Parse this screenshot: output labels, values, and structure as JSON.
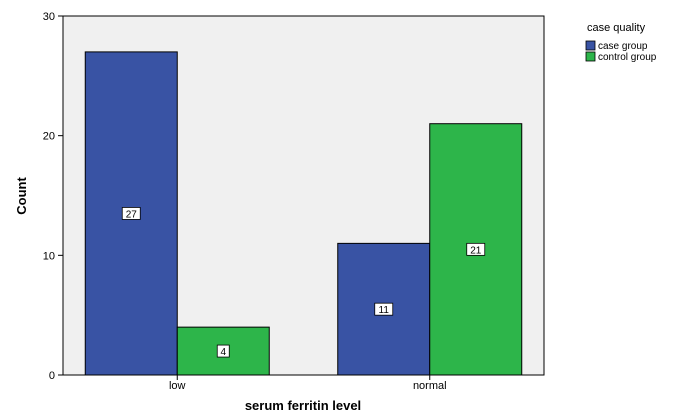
{
  "chart_data": {
    "type": "bar",
    "categories": [
      "low",
      "normal"
    ],
    "series": [
      {
        "name": "case group",
        "values": [
          27,
          11
        ]
      },
      {
        "name": "control group",
        "values": [
          4,
          21
        ]
      }
    ],
    "xlabel": "serum ferritin level",
    "ylabel": "Count",
    "ylim": [
      0,
      30
    ],
    "yticks": [
      0,
      10,
      20,
      30
    ],
    "legend_title": "case quality",
    "legend_position": "top-right",
    "grid": false,
    "plot_background": "#f0f0f0",
    "series_colors": [
      "#3953a4",
      "#2db54a"
    ]
  }
}
